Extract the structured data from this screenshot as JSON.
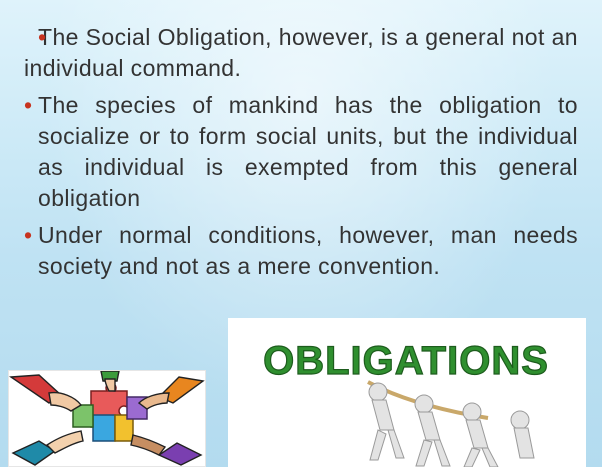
{
  "bullets": [
    {
      "marker": "•",
      "text": "The Social Obligation,  however, is a general not an individual command."
    },
    {
      "marker": "•",
      "text": "The species of mankind has the obligation to socialize or to form social units, but the individual as individual is exempted from this general obligation"
    },
    {
      "marker": "•",
      "text": "Under normal conditions, however,  man needs society  and not as a mere convention."
    }
  ],
  "images": {
    "hands": {
      "icon": "puzzle-hands-icon"
    },
    "obligations": {
      "icon": "obligations-tug-icon",
      "banner_text": "OBLIGATIONS"
    }
  },
  "colors": {
    "bullet_marker": "#c7331f",
    "text": "#333333",
    "banner_green": "#2f8f2f"
  }
}
